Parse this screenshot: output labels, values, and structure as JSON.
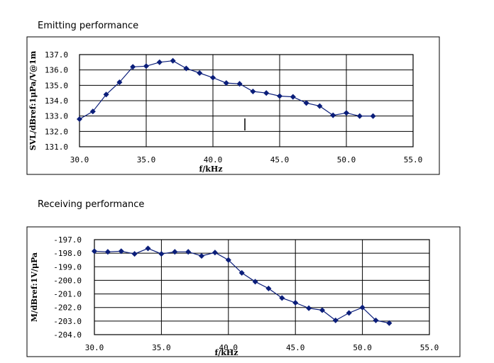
{
  "chart_data": [
    {
      "type": "line",
      "title": "Emitting performance",
      "xlabel": "f/kHz",
      "ylabel": "SVL/dBref:1μPa/V@1m",
      "xlim": [
        30,
        55
      ],
      "ylim": [
        131,
        137
      ],
      "x_ticks": [
        "30.0",
        "35.0",
        "40.0",
        "45.0",
        "50.0",
        "55.0"
      ],
      "y_ticks": [
        "137.0",
        "136.0",
        "135.0",
        "134.0",
        "133.0",
        "132.0",
        "131.0"
      ],
      "grid": true,
      "series_color": "#0b1e7a",
      "series": [
        {
          "x": [
            30,
            31,
            32,
            33,
            34,
            35,
            36,
            37,
            38,
            39,
            40,
            41,
            42,
            43,
            44,
            45,
            46,
            47,
            48,
            49,
            50,
            51,
            52
          ],
          "values": [
            132.8,
            133.3,
            134.4,
            135.2,
            136.2,
            136.25,
            136.5,
            136.6,
            136.1,
            135.8,
            135.5,
            135.15,
            135.1,
            134.6,
            134.5,
            134.3,
            134.25,
            133.85,
            133.65,
            133.05,
            133.2,
            133.0,
            133.0
          ]
        }
      ]
    },
    {
      "type": "line",
      "title": "Receiving performance",
      "xlabel": "f/kHz",
      "ylabel": "M/dBref:1V/μPa",
      "xlim": [
        30,
        55
      ],
      "ylim": [
        -204,
        -197
      ],
      "x_ticks": [
        "30.0",
        "35.0",
        "40.0",
        "45.0",
        "50.0",
        "55.0"
      ],
      "y_ticks": [
        "-197.0",
        "-198.0",
        "-199.0",
        "-200.0",
        "-201.0",
        "-202.0",
        "-203.0",
        "-204.0"
      ],
      "grid": true,
      "series_color": "#0b1e7a",
      "series": [
        {
          "x": [
            30,
            31,
            32,
            33,
            34,
            35,
            36,
            37,
            38,
            39,
            40,
            41,
            42,
            43,
            44,
            45,
            46,
            47,
            48,
            49,
            50,
            51,
            52
          ],
          "values": [
            -197.85,
            -197.9,
            -197.85,
            -198.05,
            -197.65,
            -198.05,
            -197.9,
            -197.9,
            -198.2,
            -197.95,
            -198.5,
            -199.45,
            -200.1,
            -200.6,
            -201.3,
            -201.65,
            -202.05,
            -202.2,
            -202.95,
            -202.4,
            -202.0,
            -202.95,
            -203.15
          ]
        }
      ]
    }
  ]
}
